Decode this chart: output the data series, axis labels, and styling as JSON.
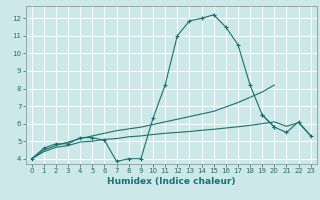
{
  "xlabel": "Humidex (Indice chaleur)",
  "bg_color": "#cce8e8",
  "grid_color": "#ffffff",
  "line_color": "#1a7070",
  "xlim": [
    -0.5,
    23.5
  ],
  "ylim": [
    3.7,
    12.7
  ],
  "xticks": [
    0,
    1,
    2,
    3,
    4,
    5,
    6,
    7,
    8,
    9,
    10,
    11,
    12,
    13,
    14,
    15,
    16,
    17,
    18,
    19,
    20,
    21,
    22,
    23
  ],
  "yticks": [
    4,
    5,
    6,
    7,
    8,
    9,
    10,
    11,
    12
  ],
  "series": [
    {
      "x": [
        0,
        1,
        2,
        3,
        4,
        5,
        6,
        7,
        8,
        9,
        10,
        11,
        12,
        13,
        14,
        15,
        16,
        17,
        18,
        19,
        20
      ],
      "y": [
        4.0,
        4.6,
        4.85,
        4.85,
        5.2,
        5.2,
        5.05,
        3.85,
        4.0,
        4.0,
        6.3,
        8.2,
        11.0,
        11.85,
        12.0,
        12.2,
        11.5,
        10.5,
        8.2,
        6.5,
        5.8
      ],
      "marker": true
    },
    {
      "x": [
        0,
        1,
        2,
        3,
        4,
        5,
        6,
        7,
        8,
        9,
        10,
        11,
        12,
        13,
        14,
        15,
        16,
        17,
        18,
        19,
        20
      ],
      "y": [
        4.0,
        4.5,
        4.75,
        4.95,
        5.15,
        5.3,
        5.45,
        5.6,
        5.7,
        5.8,
        5.95,
        6.1,
        6.25,
        6.4,
        6.55,
        6.7,
        6.95,
        7.2,
        7.5,
        7.8,
        8.2
      ],
      "marker": false
    },
    {
      "x": [
        0,
        1,
        2,
        3,
        4,
        5,
        6,
        7,
        8,
        9,
        10,
        11,
        12,
        13,
        14,
        15,
        16,
        17,
        18,
        19,
        20,
        21,
        22,
        23
      ],
      "y": [
        4.0,
        4.4,
        4.65,
        4.75,
        4.95,
        5.0,
        5.1,
        5.15,
        5.25,
        5.3,
        5.38,
        5.45,
        5.5,
        5.55,
        5.62,
        5.68,
        5.75,
        5.82,
        5.9,
        6.0,
        6.1,
        5.85,
        6.05,
        5.3
      ],
      "marker": false
    },
    {
      "x": [
        19,
        20,
        21,
        22,
        23
      ],
      "y": [
        6.5,
        5.8,
        5.5,
        6.1,
        5.3
      ],
      "marker": true
    }
  ]
}
